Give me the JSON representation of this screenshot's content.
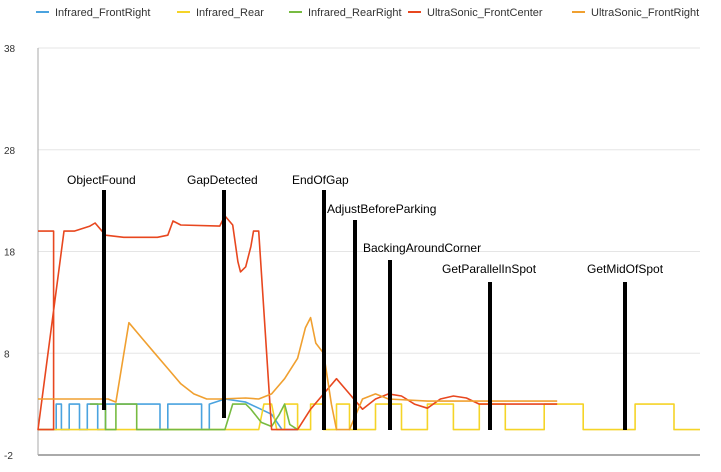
{
  "chart_data": {
    "type": "line",
    "title": "",
    "xlabel": "",
    "ylabel": "",
    "ylim": [
      -2,
      38
    ],
    "y_ticks": [
      "38",
      "28",
      "18",
      "8",
      "-2"
    ],
    "grid": true,
    "legend_position": "top",
    "series": [
      {
        "name": "Infrared_FrontRight",
        "color": "#4aa3df",
        "points": [
          [
            0.0,
            0.5
          ],
          [
            0.07,
            0.5
          ],
          [
            0.07,
            3.0
          ],
          [
            0.09,
            3.0
          ],
          [
            0.09,
            0.5
          ],
          [
            0.12,
            0.5
          ],
          [
            0.12,
            3.0
          ],
          [
            0.16,
            3.0
          ],
          [
            0.16,
            0.5
          ],
          [
            0.19,
            0.5
          ],
          [
            0.19,
            3.0
          ],
          [
            0.23,
            3.0
          ],
          [
            0.23,
            0.5
          ],
          [
            0.26,
            0.5
          ],
          [
            0.26,
            3.0
          ],
          [
            0.47,
            3.0
          ],
          [
            0.47,
            0.5
          ],
          [
            0.5,
            0.5
          ],
          [
            0.5,
            3.0
          ],
          [
            0.63,
            3.0
          ],
          [
            0.63,
            0.5
          ],
          [
            0.66,
            0.5
          ],
          [
            0.66,
            3.0
          ],
          [
            0.72,
            3.5
          ],
          [
            0.8,
            3.2
          ],
          [
            0.85,
            2.6
          ],
          [
            0.9,
            2.0
          ],
          [
            0.94,
            0.5
          ],
          [
            1.0,
            0.5
          ]
        ]
      },
      {
        "name": "Infrared_Rear",
        "color": "#f5d428",
        "points": [
          [
            0.0,
            0.5
          ],
          [
            0.85,
            0.5
          ],
          [
            0.87,
            3.0
          ],
          [
            0.9,
            3.0
          ],
          [
            0.92,
            0.5
          ],
          [
            0.95,
            0.5
          ],
          [
            0.95,
            3.0
          ],
          [
            1.0,
            3.0
          ],
          [
            1.0,
            0.5
          ],
          [
            1.05,
            0.5
          ],
          [
            1.05,
            3.0
          ],
          [
            1.1,
            3.0
          ],
          [
            1.1,
            0.5
          ],
          [
            1.15,
            0.5
          ],
          [
            1.15,
            3.0
          ],
          [
            1.2,
            3.0
          ],
          [
            1.2,
            0.5
          ],
          [
            1.3,
            0.5
          ],
          [
            1.3,
            3.0
          ],
          [
            1.4,
            3.0
          ],
          [
            1.4,
            0.5
          ],
          [
            1.5,
            0.5
          ],
          [
            1.5,
            3.0
          ],
          [
            1.6,
            3.0
          ],
          [
            1.6,
            0.5
          ],
          [
            1.7,
            0.5
          ],
          [
            1.7,
            3.0
          ],
          [
            1.8,
            3.0
          ],
          [
            1.8,
            0.5
          ],
          [
            1.95,
            0.5
          ],
          [
            1.95,
            3.0
          ],
          [
            2.1,
            3.0
          ],
          [
            2.1,
            0.5
          ],
          [
            2.3,
            0.5
          ],
          [
            2.3,
            3.0
          ],
          [
            2.45,
            3.0
          ],
          [
            2.45,
            0.5
          ],
          [
            2.55,
            0.5
          ]
        ]
      },
      {
        "name": "Infrared_RearRight",
        "color": "#77bb41",
        "points": [
          [
            0.2,
            3.0
          ],
          [
            0.26,
            3.0
          ],
          [
            0.26,
            0.5
          ],
          [
            0.3,
            0.5
          ],
          [
            0.3,
            3.0
          ],
          [
            0.38,
            3.0
          ],
          [
            0.38,
            0.5
          ],
          [
            0.4,
            0.5
          ],
          [
            0.72,
            0.5
          ],
          [
            0.75,
            3.0
          ],
          [
            0.8,
            3.0
          ],
          [
            0.82,
            2.5
          ],
          [
            0.86,
            1.2
          ],
          [
            0.9,
            0.8
          ],
          [
            0.93,
            2.0
          ],
          [
            0.95,
            3.0
          ],
          [
            0.97,
            1.0
          ],
          [
            1.0,
            0.5
          ]
        ]
      },
      {
        "name": "UltraSonic_FrontCenter",
        "color": "#e8471f",
        "points": [
          [
            0.0,
            20.0
          ],
          [
            0.06,
            20.0
          ],
          [
            0.06,
            0.5
          ],
          [
            0.0,
            0.5
          ],
          [
            0.1,
            20.0
          ],
          [
            0.14,
            20.0
          ],
          [
            0.2,
            20.5
          ],
          [
            0.22,
            20.8
          ],
          [
            0.26,
            19.6
          ],
          [
            0.33,
            19.4
          ],
          [
            0.46,
            19.4
          ],
          [
            0.5,
            19.6
          ],
          [
            0.52,
            21.0
          ],
          [
            0.55,
            20.6
          ],
          [
            0.7,
            20.5
          ],
          [
            0.72,
            21.5
          ],
          [
            0.75,
            20.6
          ],
          [
            0.77,
            17.0
          ],
          [
            0.78,
            16.0
          ],
          [
            0.8,
            16.5
          ],
          [
            0.82,
            18.5
          ],
          [
            0.83,
            20.0
          ],
          [
            0.85,
            20.0
          ],
          [
            0.9,
            0.5
          ],
          [
            1.0,
            0.5
          ],
          [
            1.05,
            2.5
          ],
          [
            1.1,
            4.0
          ],
          [
            1.15,
            5.5
          ],
          [
            1.2,
            4.0
          ],
          [
            1.25,
            2.5
          ],
          [
            1.3,
            3.5
          ],
          [
            1.35,
            4.0
          ],
          [
            1.4,
            3.8
          ],
          [
            1.45,
            3.0
          ],
          [
            1.5,
            2.6
          ],
          [
            1.55,
            3.5
          ],
          [
            1.6,
            3.8
          ],
          [
            1.65,
            3.6
          ],
          [
            1.7,
            3.0
          ],
          [
            1.8,
            3.0
          ],
          [
            1.9,
            3.0
          ],
          [
            2.0,
            3.0
          ]
        ]
      },
      {
        "name": "UltraSonic_FrontRight",
        "color": "#f0a030",
        "points": [
          [
            0.0,
            3.5
          ],
          [
            0.27,
            3.5
          ],
          [
            0.3,
            3.2
          ],
          [
            0.35,
            11.0
          ],
          [
            0.4,
            9.5
          ],
          [
            0.45,
            8.0
          ],
          [
            0.5,
            6.5
          ],
          [
            0.55,
            5.0
          ],
          [
            0.6,
            4.0
          ],
          [
            0.65,
            3.5
          ],
          [
            0.7,
            3.5
          ],
          [
            0.8,
            3.6
          ],
          [
            0.85,
            3.5
          ],
          [
            0.9,
            4.0
          ],
          [
            0.95,
            5.5
          ],
          [
            1.0,
            7.5
          ],
          [
            1.03,
            10.5
          ],
          [
            1.05,
            11.5
          ],
          [
            1.07,
            9.0
          ],
          [
            1.1,
            8.0
          ],
          [
            1.13,
            3.0
          ],
          [
            1.15,
            0.5
          ],
          [
            1.2,
            0.5
          ],
          [
            1.25,
            3.5
          ],
          [
            1.3,
            4.0
          ],
          [
            1.35,
            3.5
          ],
          [
            1.5,
            3.3
          ],
          [
            1.6,
            3.3
          ],
          [
            1.7,
            3.3
          ],
          [
            1.8,
            3.3
          ],
          [
            1.9,
            3.3
          ],
          [
            2.0,
            3.3
          ]
        ]
      }
    ],
    "annotations": [
      {
        "label": "ObjectFound"
      },
      {
        "label": "GapDetected"
      },
      {
        "label": "EndOfGap"
      },
      {
        "label": "AdjustBeforeParking"
      },
      {
        "label": "BackingAroundCorner"
      },
      {
        "label": "GetParallelInSpot"
      },
      {
        "label": "GetMidOfSpot"
      }
    ]
  }
}
